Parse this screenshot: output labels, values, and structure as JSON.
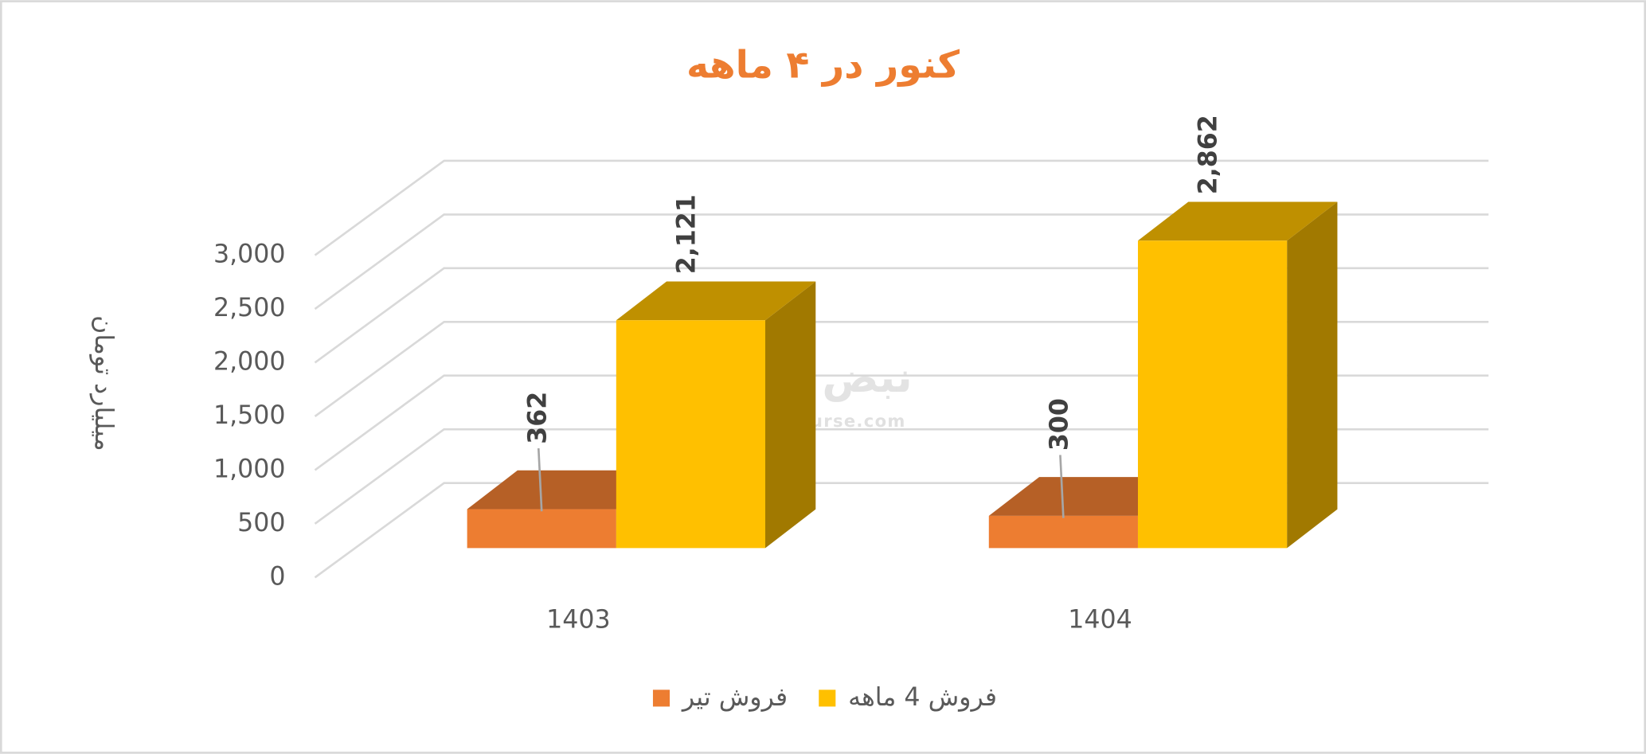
{
  "chart_data": {
    "type": "bar3d",
    "title": "کنور در ۴ ماهه",
    "y_label": "میلیارد تومان",
    "categories": [
      "1403",
      "1404"
    ],
    "series": [
      {
        "name": "فروش تیر",
        "color": "#ED7D31",
        "values": [
          362,
          300
        ],
        "value_labels": [
          "362",
          "300"
        ]
      },
      {
        "name": "فروش 4  ماهه",
        "color": "#FFC000",
        "values": [
          2121,
          2862
        ],
        "value_labels": [
          "2,121",
          "2,862"
        ]
      }
    ],
    "ylim": [
      0,
      3000
    ],
    "yticks": [
      0,
      500,
      {
        "value": 1000,
        "label": "1,000"
      },
      {
        "value": 1500,
        "label": "1,500"
      },
      {
        "value": 2000,
        "label": "2,000"
      },
      {
        "value": 2500,
        "label": "2,500"
      },
      {
        "value": 3000,
        "label": "3,000"
      }
    ],
    "grid": true,
    "legend": "bottom",
    "watermark": {
      "text": "نبض بورس",
      "url": "nabzebourse.com"
    }
  }
}
